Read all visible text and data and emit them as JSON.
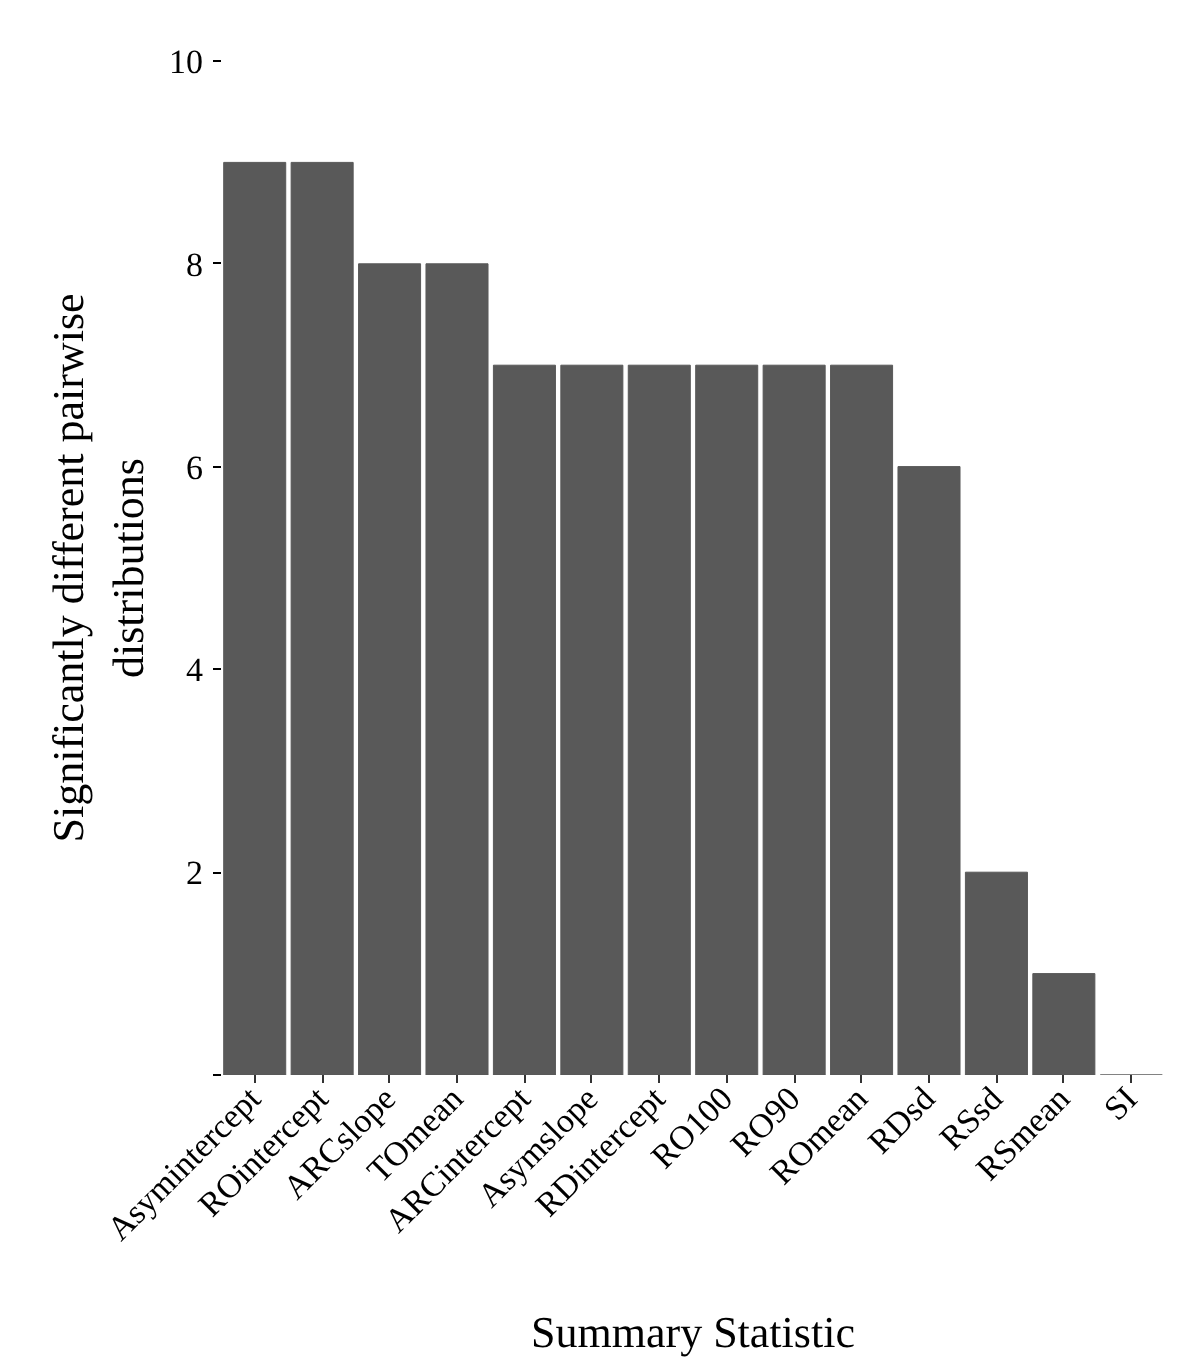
{
  "chart_data": {
    "type": "bar",
    "xlabel": "Summary Statistic",
    "ylabel": "Significantly different pairwise\ndistributions",
    "categories": [
      "Asymintercept",
      "ROintercept",
      "ARCslope",
      "TOmean",
      "ARCintercept",
      "Asymslope",
      "RDintercept",
      "RO100",
      "RO90",
      "ROmean",
      "RDsd",
      "RSsd",
      "RSmean",
      "SI"
    ],
    "values": [
      9,
      9,
      8,
      8,
      7,
      7,
      7,
      7,
      7,
      7,
      6,
      2,
      1,
      0
    ],
    "color": "#595959",
    "ylim": [
      0,
      10
    ],
    "yticks": [
      {
        "value": 0,
        "label": null
      },
      2,
      4,
      6,
      8,
      10
    ],
    "grid": false
  }
}
